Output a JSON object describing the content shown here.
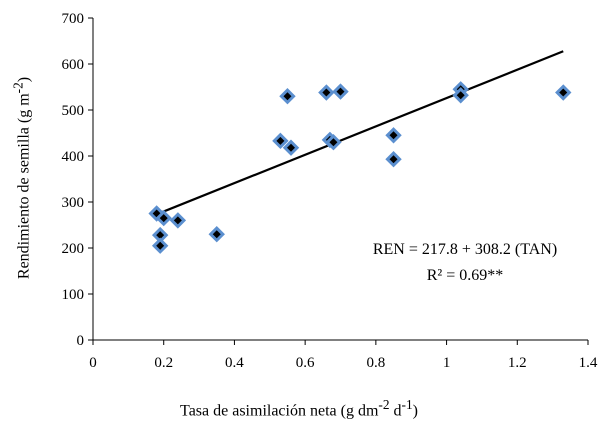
{
  "chart_data": {
    "type": "scatter",
    "xlabel_parts": [
      "Tasa de asimilación  neta (g dm",
      "-2",
      " d",
      "-1",
      ")"
    ],
    "ylabel_parts": [
      "Rendimiento de semilla  (g m",
      "-2",
      ")"
    ],
    "xlim": [
      0,
      1.4
    ],
    "ylim": [
      0,
      700
    ],
    "x_ticks": [
      "0",
      "0.2",
      "0.4",
      "0.6",
      "0.8",
      "1",
      "1.2",
      "1.4"
    ],
    "y_ticks": [
      "0",
      "100",
      "200",
      "300",
      "400",
      "500",
      "600",
      "700"
    ],
    "points": [
      {
        "x": 0.18,
        "y": 275
      },
      {
        "x": 0.19,
        "y": 228
      },
      {
        "x": 0.19,
        "y": 205
      },
      {
        "x": 0.2,
        "y": 265
      },
      {
        "x": 0.24,
        "y": 260
      },
      {
        "x": 0.35,
        "y": 230
      },
      {
        "x": 0.53,
        "y": 433
      },
      {
        "x": 0.55,
        "y": 530
      },
      {
        "x": 0.56,
        "y": 418
      },
      {
        "x": 0.66,
        "y": 538
      },
      {
        "x": 0.67,
        "y": 435
      },
      {
        "x": 0.68,
        "y": 430
      },
      {
        "x": 0.7,
        "y": 540
      },
      {
        "x": 0.85,
        "y": 445
      },
      {
        "x": 0.85,
        "y": 393
      },
      {
        "x": 1.04,
        "y": 545
      },
      {
        "x": 1.04,
        "y": 532
      },
      {
        "x": 1.33,
        "y": 538
      }
    ],
    "trendline": {
      "intercept": 217.8,
      "slope": 308.2,
      "x_range": [
        0.18,
        1.33
      ]
    },
    "annotations": [
      "REN = 217.8 + 308.2  (TAN)",
      "R² = 0.69**"
    ],
    "grid": false,
    "marker_colors": {
      "outline": "#5b8fcf",
      "fill": "#000000"
    },
    "line_color": "#000000"
  }
}
